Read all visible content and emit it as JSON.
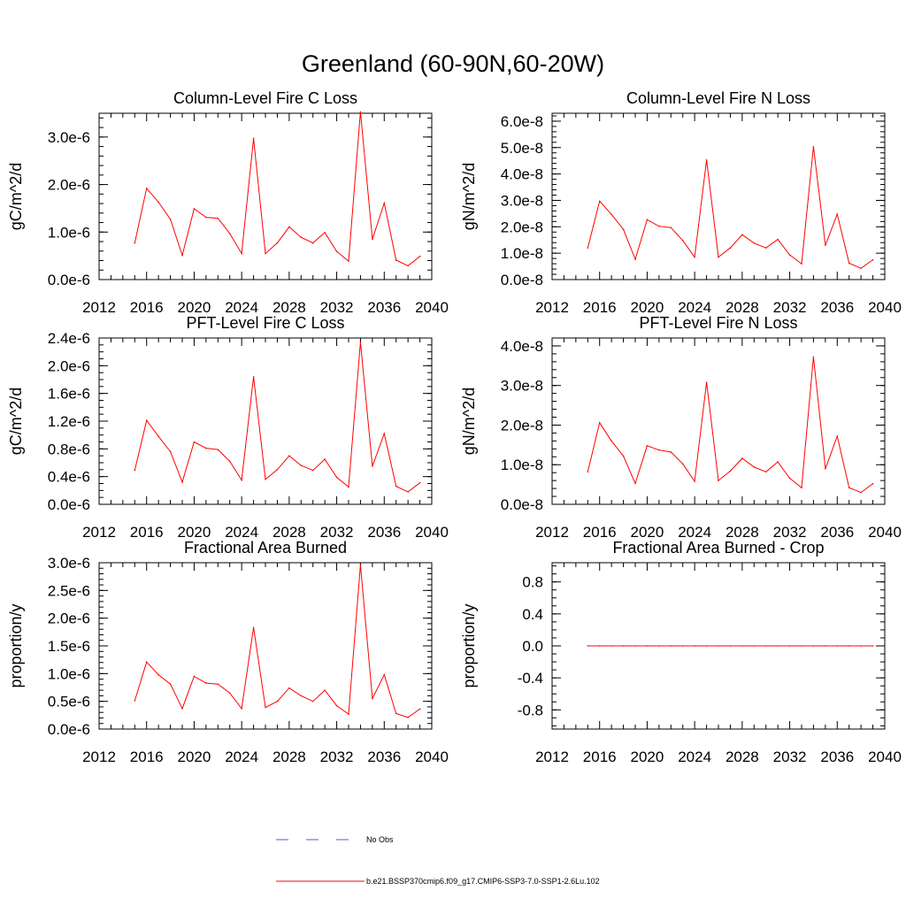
{
  "title": "Greenland (60-90N,60-20W)",
  "chart_data": [
    {
      "type": "line",
      "title": "Column-Level Fire C Loss",
      "ylabel": "gC/m^2/d",
      "x": [
        2015,
        2016,
        2017,
        2018,
        2019,
        2020,
        2021,
        2022,
        2023,
        2024,
        2025,
        2026,
        2027,
        2028,
        2029,
        2030,
        2031,
        2032,
        2033,
        2034,
        2035,
        2036,
        2037,
        2038,
        2039
      ],
      "series": [
        {
          "name": "b.e21.BSSP370cmip6.f09_g17.CMIP6-SSP3-7.0-SSP1-2.6Lu.102",
          "color": "#ff0000",
          "values": [
            7.7e-07,
            1.92e-06,
            1.63e-06,
            1.27e-06,
            5.1e-07,
            1.49e-06,
            1.31e-06,
            1.29e-06,
            9.7e-07,
            5.5e-07,
            2.97e-06,
            5.5e-07,
            7.7e-07,
            1.11e-06,
            8.9e-07,
            7.7e-07,
            9.9e-07,
            5.9e-07,
            3.9e-07,
            3.53e-06,
            8.5e-07,
            1.61e-06,
            4.1e-07,
            2.9e-07,
            4.9e-07
          ]
        }
      ],
      "xlim": [
        2012,
        2040
      ],
      "ylim": [
        0,
        3.5e-06
      ],
      "xticks": [
        2012,
        2016,
        2020,
        2024,
        2028,
        2032,
        2036,
        2040
      ],
      "xtick_labels": [
        "2012",
        "2016",
        "2020",
        "2024",
        "2028",
        "2032",
        "2036",
        "2040"
      ],
      "yticks": [
        0,
        1e-06,
        2e-06,
        3e-06
      ],
      "ytick_labels": [
        "0.0e-6",
        "1.0e-6",
        "2.0e-6",
        "3.0e-6"
      ],
      "yminor_step": 2e-07
    },
    {
      "type": "line",
      "title": "Column-Level Fire N Loss",
      "ylabel": "gN/m^2/d",
      "x": [
        2015,
        2016,
        2017,
        2018,
        2019,
        2020,
        2021,
        2022,
        2023,
        2024,
        2025,
        2026,
        2027,
        2028,
        2029,
        2030,
        2031,
        2032,
        2033,
        2034,
        2035,
        2036,
        2037,
        2038,
        2039
      ],
      "series": [
        {
          "name": "b.e21.BSSP370cmip6.f09_g17.CMIP6-SSP3-7.0-SSP1-2.6Lu.102",
          "color": "#ff0000",
          "values": [
            1.2e-08,
            2.97e-08,
            2.47e-08,
            1.9e-08,
            7.7e-09,
            2.27e-08,
            2.02e-08,
            1.97e-08,
            1.48e-08,
            8.5e-09,
            4.53e-08,
            8.5e-09,
            1.2e-08,
            1.7e-08,
            1.38e-08,
            1.2e-08,
            1.52e-08,
            9.3e-09,
            6e-09,
            5.03e-08,
            1.3e-08,
            2.48e-08,
            6.2e-09,
            4.3e-09,
            7.5e-09
          ]
        }
      ],
      "xlim": [
        2012,
        2040
      ],
      "ylim": [
        0,
        6.3e-08
      ],
      "xticks": [
        2012,
        2016,
        2020,
        2024,
        2028,
        2032,
        2036,
        2040
      ],
      "xtick_labels": [
        "2012",
        "2016",
        "2020",
        "2024",
        "2028",
        "2032",
        "2036",
        "2040"
      ],
      "yticks": [
        0,
        1e-08,
        2e-08,
        3e-08,
        4e-08,
        5e-08,
        6e-08
      ],
      "ytick_labels": [
        "0.0e-8",
        "1.0e-8",
        "2.0e-8",
        "3.0e-8",
        "4.0e-8",
        "5.0e-8",
        "6.0e-8"
      ],
      "yminor_step": 2e-09
    },
    {
      "type": "line",
      "title": "PFT-Level Fire C Loss",
      "ylabel": "gC/m^2/d",
      "x": [
        2015,
        2016,
        2017,
        2018,
        2019,
        2020,
        2021,
        2022,
        2023,
        2024,
        2025,
        2026,
        2027,
        2028,
        2029,
        2030,
        2031,
        2032,
        2033,
        2034,
        2035,
        2036,
        2037,
        2038,
        2039
      ],
      "series": [
        {
          "name": "b.e21.BSSP370cmip6.f09_g17.CMIP6-SSP3-7.0-SSP1-2.6Lu.102",
          "color": "#ff0000",
          "values": [
            4.9e-07,
            1.21e-06,
            9.8e-07,
            7.6e-07,
            3.2e-07,
            9e-07,
            8.1e-07,
            7.9e-07,
            6.2e-07,
            3.5e-07,
            1.84e-06,
            3.6e-07,
            5e-07,
            7e-07,
            5.6e-07,
            4.9e-07,
            6.5e-07,
            3.9e-07,
            2.5e-07,
            2.34e-06,
            5.5e-07,
            1.02e-06,
            2.6e-07,
            1.8e-07,
            3.1e-07
          ]
        }
      ],
      "xlim": [
        2012,
        2040
      ],
      "ylim": [
        0,
        2.4e-06
      ],
      "xticks": [
        2012,
        2016,
        2020,
        2024,
        2028,
        2032,
        2036,
        2040
      ],
      "xtick_labels": [
        "2012",
        "2016",
        "2020",
        "2024",
        "2028",
        "2032",
        "2036",
        "2040"
      ],
      "yticks": [
        0,
        4e-07,
        8e-07,
        1.2e-06,
        1.6e-06,
        2e-06,
        2.4e-06
      ],
      "ytick_labels": [
        "0.0e-6",
        "0.4e-6",
        "0.8e-6",
        "1.2e-6",
        "1.6e-6",
        "2.0e-6",
        "2.4e-6"
      ],
      "yminor_step": 1e-07
    },
    {
      "type": "line",
      "title": "PFT-Level Fire N Loss",
      "ylabel": "gN/m^2/d",
      "x": [
        2015,
        2016,
        2017,
        2018,
        2019,
        2020,
        2021,
        2022,
        2023,
        2024,
        2025,
        2026,
        2027,
        2028,
        2029,
        2030,
        2031,
        2032,
        2033,
        2034,
        2035,
        2036,
        2037,
        2038,
        2039
      ],
      "series": [
        {
          "name": "b.e21.BSSP370cmip6.f09_g17.CMIP6-SSP3-7.0-SSP1-2.6Lu.102",
          "color": "#ff0000",
          "values": [
            8.2e-09,
            2.06e-08,
            1.6e-08,
            1.22e-08,
            5.3e-09,
            1.48e-08,
            1.37e-08,
            1.32e-08,
            1.02e-08,
            5.8e-09,
            3.08e-08,
            6e-09,
            8.4e-09,
            1.16e-08,
            9.4e-09,
            8.2e-09,
            1.07e-08,
            6.6e-09,
            4.2e-09,
            3.72e-08,
            9e-09,
            1.72e-08,
            4.2e-09,
            3e-09,
            5.2e-09
          ]
        }
      ],
      "xlim": [
        2012,
        2040
      ],
      "ylim": [
        0,
        4.2e-08
      ],
      "xticks": [
        2012,
        2016,
        2020,
        2024,
        2028,
        2032,
        2036,
        2040
      ],
      "xtick_labels": [
        "2012",
        "2016",
        "2020",
        "2024",
        "2028",
        "2032",
        "2036",
        "2040"
      ],
      "yticks": [
        0,
        1e-08,
        2e-08,
        3e-08,
        4e-08
      ],
      "ytick_labels": [
        "0.0e-8",
        "1.0e-8",
        "2.0e-8",
        "3.0e-8",
        "4.0e-8"
      ],
      "yminor_step": 2e-09
    },
    {
      "type": "line",
      "title": "Fractional Area Burned",
      "ylabel": "proportion/y",
      "x": [
        2015,
        2016,
        2017,
        2018,
        2019,
        2020,
        2021,
        2022,
        2023,
        2024,
        2025,
        2026,
        2027,
        2028,
        2029,
        2030,
        2031,
        2032,
        2033,
        2034,
        2035,
        2036,
        2037,
        2038,
        2039
      ],
      "series": [
        {
          "name": "b.e21.BSSP370cmip6.f09_g17.CMIP6-SSP3-7.0-SSP1-2.6Lu.102",
          "color": "#ff0000",
          "values": [
            5.1e-07,
            1.21e-06,
            9.8e-07,
            8.1e-07,
            3.7e-07,
            9.5e-07,
            8.3e-07,
            8.1e-07,
            6.5e-07,
            3.7e-07,
            1.83e-06,
            3.9e-07,
            5e-07,
            7.4e-07,
            6e-07,
            5e-07,
            7e-07,
            4.2e-07,
            2.7e-07,
            2.96e-06,
            5.5e-07,
            9.8e-07,
            2.8e-07,
            2.1e-07,
            3.6e-07
          ]
        }
      ],
      "xlim": [
        2012,
        2040
      ],
      "ylim": [
        0,
        3e-06
      ],
      "xticks": [
        2012,
        2016,
        2020,
        2024,
        2028,
        2032,
        2036,
        2040
      ],
      "xtick_labels": [
        "2012",
        "2016",
        "2020",
        "2024",
        "2028",
        "2032",
        "2036",
        "2040"
      ],
      "yticks": [
        0,
        5e-07,
        1e-06,
        1.5e-06,
        2e-06,
        2.5e-06,
        3e-06
      ],
      "ytick_labels": [
        "0.0e-6",
        "0.5e-6",
        "1.0e-6",
        "1.5e-6",
        "2.0e-6",
        "2.5e-6",
        "3.0e-6"
      ],
      "yminor_step": 1e-07
    },
    {
      "type": "line",
      "title": "Fractional Area Burned - Crop",
      "ylabel": "proportion/y",
      "x": [
        2015,
        2016,
        2017,
        2018,
        2019,
        2020,
        2021,
        2022,
        2023,
        2024,
        2025,
        2026,
        2027,
        2028,
        2029,
        2030,
        2031,
        2032,
        2033,
        2034,
        2035,
        2036,
        2037,
        2038,
        2039
      ],
      "series": [
        {
          "name": "b.e21.BSSP370cmip6.f09_g17.CMIP6-SSP3-7.0-SSP1-2.6Lu.102",
          "color": "#ff0000",
          "values": [
            0,
            0,
            0,
            0,
            0,
            0,
            0,
            0,
            0,
            0,
            0,
            0,
            0,
            0,
            0,
            0,
            0,
            0,
            0,
            0,
            0,
            0,
            0,
            0,
            0
          ]
        }
      ],
      "xlim": [
        2012,
        2040
      ],
      "ylim": [
        -1.04,
        1.04
      ],
      "xticks": [
        2012,
        2016,
        2020,
        2024,
        2028,
        2032,
        2036,
        2040
      ],
      "xtick_labels": [
        "2012",
        "2016",
        "2020",
        "2024",
        "2028",
        "2032",
        "2036",
        "2040"
      ],
      "yticks": [
        -0.8,
        -0.4,
        0.0,
        0.4,
        0.8
      ],
      "ytick_labels": [
        "-0.8",
        "-0.4",
        "0.0",
        "0.4",
        "0.8"
      ],
      "yminor_step": 0.1
    }
  ],
  "legend": {
    "placement": "bottom-center",
    "entries": [
      {
        "label": "No Obs",
        "color": "#4b5ed8",
        "style": "dashed"
      },
      {
        "label": "b.e21.BSSP370cmip6.f09_g17.CMIP6-SSP3-7.0-SSP1-2.6Lu.102",
        "color": "#ff0000",
        "style": "solid"
      }
    ]
  }
}
